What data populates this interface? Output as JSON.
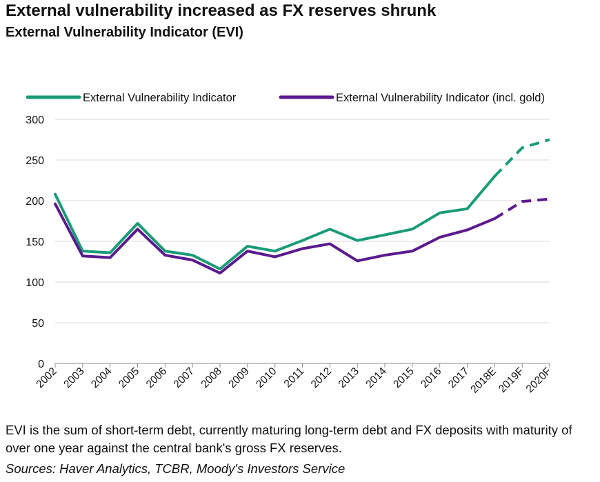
{
  "title": "External vulnerability increased as FX reserves shrunk",
  "subtitle": "External Vulnerability Indicator (EVI)",
  "footnote": "EVI is the sum of short-term debt, currently maturing long-term debt and FX deposits with maturity of over one year against the central bank's gross FX reserves.",
  "source": "Sources: Haver Analytics, TCBR, Moody's Investors Service",
  "colors": {
    "evi": "#1a9b78",
    "evi_gold": "#5b1a8f",
    "grid": "#d9d9d9",
    "axis": "#8c8c8c"
  },
  "chart_data": {
    "type": "line",
    "x": [
      "2002",
      "2003",
      "2004",
      "2005",
      "2006",
      "2007",
      "2008",
      "2009",
      "2010",
      "2011",
      "2012",
      "2013",
      "2014",
      "2015",
      "2016",
      "2017",
      "2018E",
      "2019F",
      "2020F"
    ],
    "ylim": [
      0,
      300
    ],
    "yticks": [
      0,
      50,
      100,
      150,
      200,
      250,
      300
    ],
    "grid": true,
    "legend": "top",
    "forecast_start_index": 16,
    "series": [
      {
        "name": "External Vulnerability Indicator",
        "color": "#1a9b78",
        "values": [
          208,
          138,
          136,
          172,
          138,
          133,
          116,
          144,
          138,
          151,
          165,
          151,
          158,
          165,
          185,
          190,
          230,
          265,
          275
        ]
      },
      {
        "name": "External Vulnerability Indicator (incl. gold)",
        "color": "#5b1a8f",
        "values": [
          196,
          132,
          130,
          165,
          133,
          127,
          111,
          138,
          131,
          141,
          147,
          126,
          133,
          138,
          155,
          164,
          178,
          199,
          202
        ]
      }
    ]
  }
}
